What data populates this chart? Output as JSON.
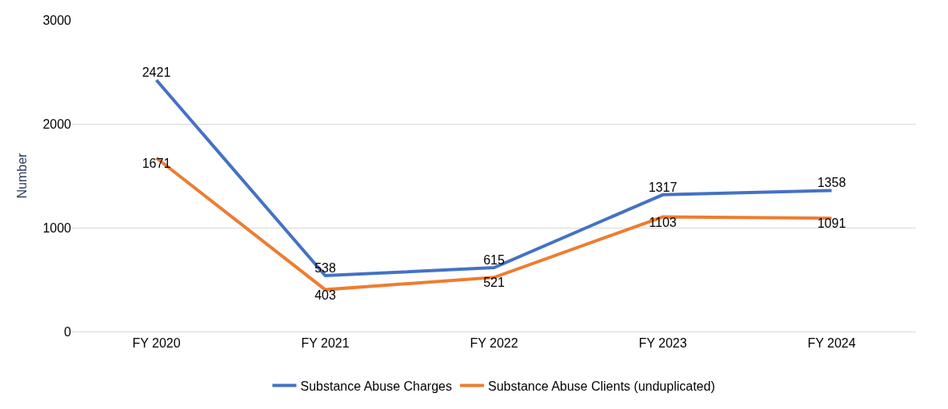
{
  "chart_data": {
    "type": "line",
    "ylabel": "Number",
    "categories": [
      "FY 2020",
      "FY 2021",
      "FY 2022",
      "FY 2023",
      "FY 2024"
    ],
    "series": [
      {
        "name": "Substance Abuse Charges",
        "color": "#4472c4",
        "values": [
          2421,
          538,
          615,
          1317,
          1358
        ]
      },
      {
        "name": "Substance Abuse Clients (unduplicated)",
        "color": "#ed7d31",
        "values": [
          1671,
          403,
          521,
          1103,
          1091
        ]
      }
    ],
    "ylim": [
      0,
      3000
    ],
    "yticks": [
      0,
      1000,
      2000,
      3000
    ],
    "grid": "y",
    "legend": "bottom",
    "data_labels": true,
    "marker": "none",
    "line_style": "solid"
  }
}
